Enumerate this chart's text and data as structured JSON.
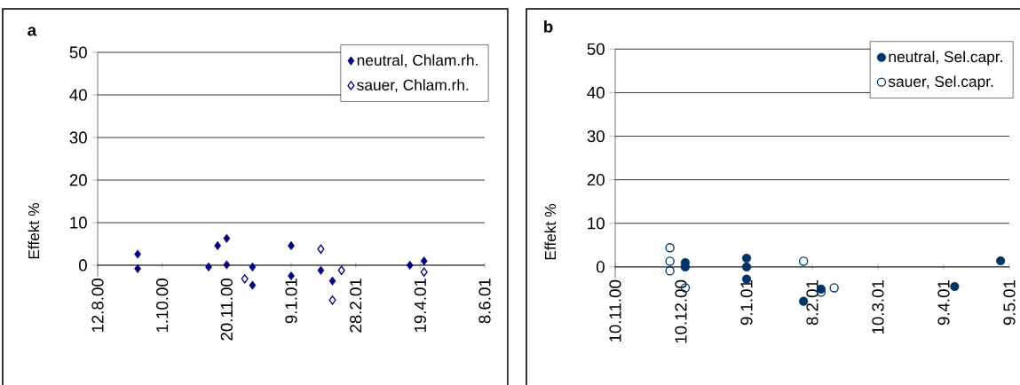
{
  "chart_data": [
    {
      "type": "scatter",
      "title": "a",
      "ylabel": "Effekt %",
      "marker": "diamond",
      "grid": "y",
      "legend": "top right",
      "xlim": [
        "2000-08-12",
        "2001-06-08"
      ],
      "xticks": [
        {
          "value": "2000-08-12",
          "label": "12.8.00"
        },
        {
          "value": "2000-10-01",
          "label": "1.10.00"
        },
        {
          "value": "2000-11-20",
          "label": "20.11.00"
        },
        {
          "value": "2001-01-09",
          "label": "9.1.01"
        },
        {
          "value": "2001-02-28",
          "label": "28.2.01"
        },
        {
          "value": "2001-04-19",
          "label": "19.4.01"
        },
        {
          "value": "2001-06-08",
          "label": "8.6.01"
        }
      ],
      "ylim": [
        -10,
        50
      ],
      "yticks": [
        0,
        10,
        20,
        30,
        40,
        50
      ],
      "series": [
        {
          "name": "neutral, Chlam.rh.",
          "color": "#000080",
          "x": [
            "2000-09-12",
            "2000-09-12",
            "2000-11-06",
            "2000-11-13",
            "2000-11-20",
            "2000-11-20",
            "2000-12-10",
            "2000-12-10",
            "2001-01-09",
            "2001-01-09",
            "2001-02-01",
            "2001-02-10",
            "2001-04-11",
            "2001-04-22"
          ],
          "values": [
            2.6,
            -0.8,
            -0.4,
            4.6,
            6.3,
            0.1,
            -0.4,
            -4.7,
            4.6,
            -2.5,
            -1.2,
            -3.7,
            0.0,
            1.0
          ]
        },
        {
          "name": "sauer, Chlam.rh.",
          "color": "#000080",
          "x": [
            "2000-12-04",
            "2001-02-01",
            "2001-02-10",
            "2001-02-17",
            "2001-04-22"
          ],
          "values": [
            -3.2,
            3.8,
            -8.2,
            -1.2,
            -1.6
          ]
        }
      ]
    },
    {
      "type": "scatter",
      "title": "b",
      "ylabel": "Effekt %",
      "marker": "circle",
      "grid": "y",
      "legend": "top right",
      "xlim": [
        "2000-11-10",
        "2001-05-09"
      ],
      "xticks": [
        {
          "value": "2000-11-10",
          "label": "10.11.00"
        },
        {
          "value": "2000-12-10",
          "label": "10.12.00"
        },
        {
          "value": "2001-01-09",
          "label": "9.1.01"
        },
        {
          "value": "2001-02-08",
          "label": "8.2.01"
        },
        {
          "value": "2001-03-10",
          "label": "10.3.01"
        },
        {
          "value": "2001-04-09",
          "label": "9.4.01"
        },
        {
          "value": "2001-05-09",
          "label": "9.5.01"
        }
      ],
      "ylim": [
        -10,
        50
      ],
      "yticks": [
        0,
        10,
        20,
        30,
        40,
        50
      ],
      "series": [
        {
          "name": "neutral, Sel.capr.",
          "color": "#003366",
          "x": [
            "2000-12-12",
            "2000-12-12",
            "2001-01-09",
            "2001-01-09",
            "2001-01-09",
            "2001-02-04",
            "2001-02-12",
            "2001-04-14",
            "2001-05-05"
          ],
          "values": [
            1.0,
            0.0,
            2.0,
            0.0,
            -2.8,
            -7.9,
            -5.1,
            -4.5,
            1.4
          ]
        },
        {
          "name": "sauer, Sel.capr.",
          "color": "#003366",
          "x": [
            "2000-12-05",
            "2000-12-05",
            "2000-12-05",
            "2000-12-12",
            "2001-02-04",
            "2001-02-12",
            "2001-02-18"
          ],
          "values": [
            4.4,
            1.3,
            -0.9,
            -4.8,
            1.3,
            -5.8,
            -4.8
          ]
        }
      ]
    }
  ]
}
